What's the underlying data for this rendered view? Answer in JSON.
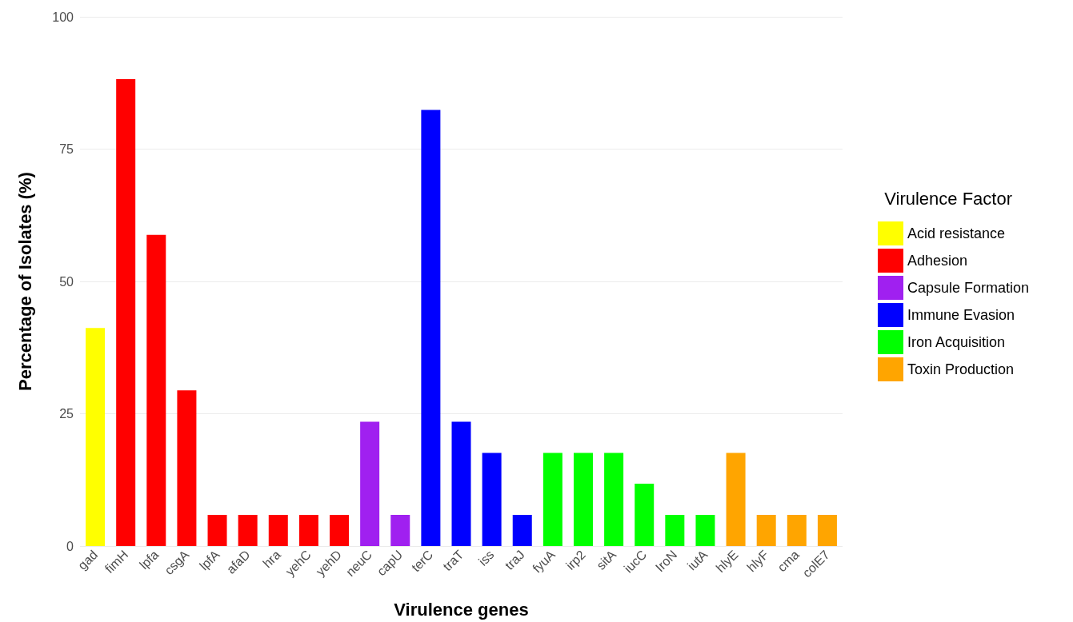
{
  "chart_data": {
    "type": "bar",
    "xlabel": "Virulence genes",
    "ylabel": "Percentage of Isolates (%)",
    "legend_title": "Virulence Factor",
    "categories": [
      "gad",
      "fimH",
      "lpfa",
      "csgA",
      "lpfA",
      "afaD",
      "hra",
      "yehC",
      "yehD",
      "neuC",
      "capU",
      "terC",
      "traT",
      "iss",
      "traJ",
      "fyuA",
      "irp2",
      "sitA",
      "iucC",
      "IroN",
      "iutA",
      "hlyE",
      "hlyF",
      "cma",
      "colE7"
    ],
    "series": [
      {
        "name": "Acid resistance",
        "color": "#ffff00",
        "values": [
          41.2,
          null,
          null,
          null,
          null,
          null,
          null,
          null,
          null,
          null,
          null,
          null,
          null,
          null,
          null,
          null,
          null,
          null,
          null,
          null,
          null,
          null,
          null,
          null,
          null
        ]
      },
      {
        "name": "Adhesion",
        "color": "#ff0000",
        "values": [
          null,
          88.2,
          58.8,
          29.4,
          5.9,
          5.9,
          5.9,
          5.9,
          5.9,
          null,
          null,
          null,
          null,
          null,
          null,
          null,
          null,
          null,
          null,
          null,
          null,
          null,
          null,
          null,
          null
        ]
      },
      {
        "name": "Capsule Formation",
        "color": "#a020f0",
        "values": [
          null,
          null,
          null,
          null,
          null,
          null,
          null,
          null,
          null,
          23.5,
          5.9,
          null,
          null,
          null,
          null,
          null,
          null,
          null,
          null,
          null,
          null,
          null,
          null,
          null,
          null
        ]
      },
      {
        "name": "Immune Evasion",
        "color": "#0000ff",
        "values": [
          null,
          null,
          null,
          null,
          null,
          null,
          null,
          null,
          null,
          null,
          null,
          82.4,
          23.5,
          17.6,
          5.9,
          null,
          null,
          null,
          null,
          null,
          null,
          null,
          null,
          null,
          null
        ]
      },
      {
        "name": "Iron Acquisition",
        "color": "#00ff00",
        "values": [
          null,
          null,
          null,
          null,
          null,
          null,
          null,
          null,
          null,
          null,
          null,
          null,
          null,
          null,
          null,
          17.6,
          17.6,
          17.6,
          11.8,
          5.9,
          5.9,
          null,
          null,
          null,
          null
        ]
      },
      {
        "name": "Toxin Production",
        "color": "#ffa500",
        "values": [
          null,
          null,
          null,
          null,
          null,
          null,
          null,
          null,
          null,
          null,
          null,
          null,
          null,
          null,
          null,
          null,
          null,
          null,
          null,
          null,
          null,
          17.6,
          5.9,
          5.9,
          5.9
        ]
      }
    ],
    "ylim": [
      0,
      100
    ],
    "yticks": [
      0,
      25,
      50,
      75,
      100
    ],
    "grid": "y",
    "legend": "right"
  }
}
